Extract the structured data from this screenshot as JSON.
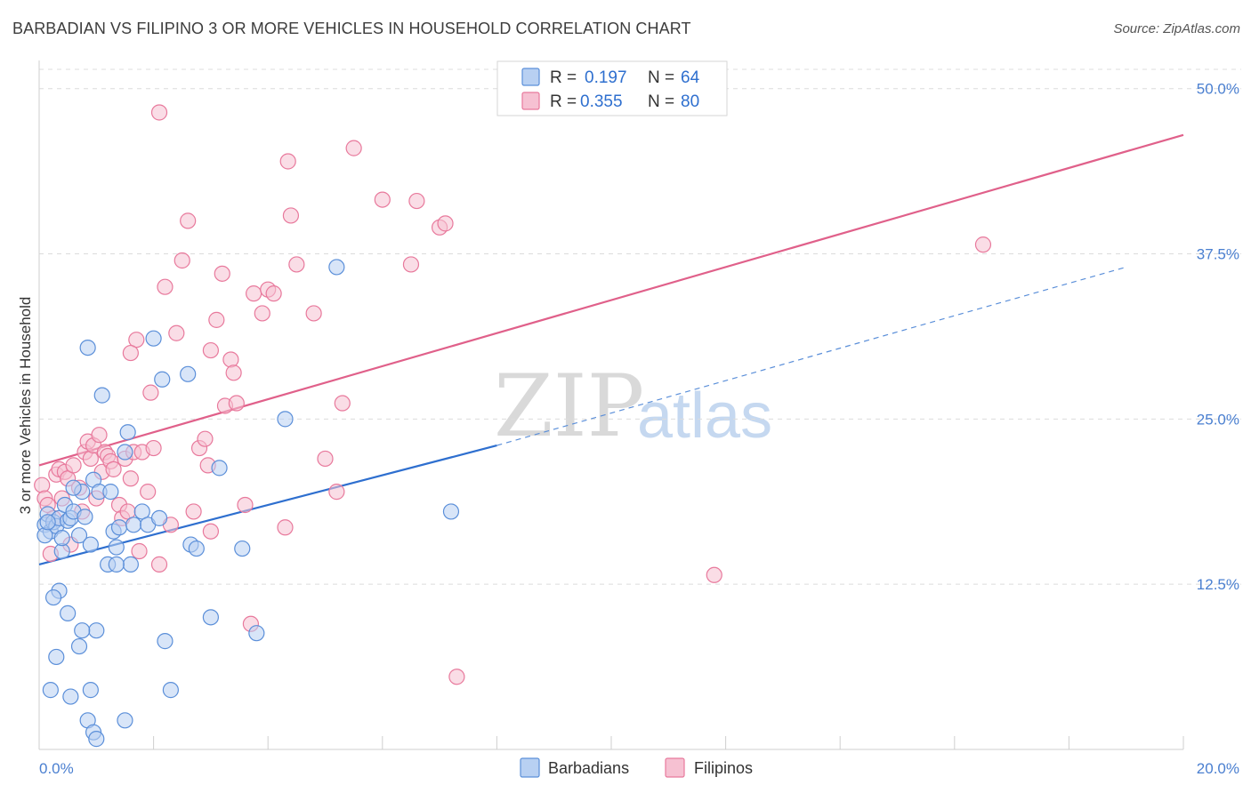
{
  "title": "BARBADIAN VS FILIPINO 3 OR MORE VEHICLES IN HOUSEHOLD CORRELATION CHART",
  "source": "Source: ZipAtlas.com",
  "watermark": {
    "zip": "ZIP",
    "atlas": "atlas"
  },
  "colors": {
    "blue": "#5b8fd9",
    "blue_fill": "#b8d0f2",
    "pink": "#e8799c",
    "pink_fill": "#f6c1d2",
    "blue_line": "#2e6fcf",
    "pink_line": "#e0608a",
    "tick_text": "#4a7fd0"
  },
  "legend": {
    "r_label": "R =",
    "n_label": "N =",
    "items": [
      {
        "r": "0.197",
        "n": "64"
      },
      {
        "r": "0.355",
        "n": "80"
      }
    ]
  },
  "chart_data": {
    "type": "scatter",
    "title": "BARBADIAN VS FILIPINO 3 OR MORE VEHICLES IN HOUSEHOLD CORRELATION CHART",
    "xlabel": "",
    "ylabel": "3 or more Vehicles in Household",
    "xlim": [
      0,
      20
    ],
    "ylim": [
      0,
      52
    ],
    "x_tick_labels": [
      "0.0%",
      "20.0%"
    ],
    "y_ticks": [
      12.5,
      25.0,
      37.5,
      50.0
    ],
    "y_tick_labels": [
      "12.5%",
      "25.0%",
      "37.5%",
      "50.0%"
    ],
    "series": [
      {
        "name": "Barbadians",
        "r": 0.197,
        "n": 64,
        "trend": {
          "x0": 0,
          "y0": 14.0,
          "x1": 8,
          "y1": 23.0,
          "dash_x1": 19.0,
          "dash_y1": 36.5
        },
        "points": [
          [
            0.1,
            17.0
          ],
          [
            0.15,
            17.8
          ],
          [
            0.2,
            16.5
          ],
          [
            0.25,
            17.2
          ],
          [
            0.3,
            16.9
          ],
          [
            0.35,
            17.5
          ],
          [
            0.4,
            15.0
          ],
          [
            0.45,
            18.5
          ],
          [
            0.5,
            17.3
          ],
          [
            0.55,
            17.5
          ],
          [
            0.6,
            18.0
          ],
          [
            0.7,
            16.2
          ],
          [
            0.75,
            19.5
          ],
          [
            0.8,
            17.6
          ],
          [
            0.85,
            30.4
          ],
          [
            0.9,
            15.5
          ],
          [
            0.95,
            20.4
          ],
          [
            1.0,
            9.0
          ],
          [
            1.05,
            19.5
          ],
          [
            1.1,
            26.8
          ],
          [
            1.2,
            14.0
          ],
          [
            1.25,
            19.5
          ],
          [
            1.3,
            16.5
          ],
          [
            1.35,
            15.3
          ],
          [
            1.4,
            16.8
          ],
          [
            1.5,
            22.5
          ],
          [
            1.55,
            24.0
          ],
          [
            1.6,
            14.0
          ],
          [
            1.65,
            17.0
          ],
          [
            1.8,
            18.0
          ],
          [
            1.9,
            17.0
          ],
          [
            2.0,
            31.1
          ],
          [
            2.1,
            17.5
          ],
          [
            2.15,
            28.0
          ],
          [
            2.2,
            8.2
          ],
          [
            2.3,
            4.5
          ],
          [
            2.6,
            28.4
          ],
          [
            2.65,
            15.5
          ],
          [
            2.75,
            15.2
          ],
          [
            3.0,
            10.0
          ],
          [
            3.15,
            21.3
          ],
          [
            3.55,
            15.2
          ],
          [
            3.8,
            8.8
          ],
          [
            4.3,
            25.0
          ],
          [
            5.2,
            36.5
          ],
          [
            7.2,
            18.0
          ],
          [
            0.3,
            7.0
          ],
          [
            0.35,
            12.0
          ],
          [
            0.5,
            10.3
          ],
          [
            0.55,
            4.0
          ],
          [
            0.7,
            7.8
          ],
          [
            0.75,
            9.0
          ],
          [
            0.85,
            2.2
          ],
          [
            0.9,
            4.5
          ],
          [
            0.95,
            1.3
          ],
          [
            1.0,
            0.8
          ],
          [
            0.25,
            11.5
          ],
          [
            1.5,
            2.2
          ],
          [
            0.2,
            4.5
          ],
          [
            0.1,
            16.2
          ],
          [
            0.15,
            17.2
          ],
          [
            0.4,
            16.0
          ],
          [
            0.6,
            19.8
          ],
          [
            1.35,
            14.0
          ]
        ]
      },
      {
        "name": "Filipinos",
        "r": 0.355,
        "n": 80,
        "trend": {
          "x0": 0,
          "y0": 21.5,
          "x1": 20,
          "y1": 46.5
        },
        "points": [
          [
            0.05,
            20.0
          ],
          [
            0.1,
            19.0
          ],
          [
            0.15,
            18.5
          ],
          [
            0.2,
            14.8
          ],
          [
            0.25,
            17.5
          ],
          [
            0.3,
            20.8
          ],
          [
            0.35,
            21.2
          ],
          [
            0.4,
            19.0
          ],
          [
            0.45,
            21.0
          ],
          [
            0.5,
            20.5
          ],
          [
            0.55,
            15.5
          ],
          [
            0.6,
            21.5
          ],
          [
            0.7,
            19.8
          ],
          [
            0.75,
            18.0
          ],
          [
            0.8,
            22.5
          ],
          [
            0.85,
            23.3
          ],
          [
            0.9,
            22.0
          ],
          [
            0.95,
            23.0
          ],
          [
            1.0,
            19.0
          ],
          [
            1.05,
            23.8
          ],
          [
            1.1,
            21.0
          ],
          [
            1.15,
            22.5
          ],
          [
            1.2,
            22.2
          ],
          [
            1.25,
            21.8
          ],
          [
            1.3,
            21.2
          ],
          [
            1.4,
            18.5
          ],
          [
            1.45,
            17.5
          ],
          [
            1.5,
            22.0
          ],
          [
            1.55,
            18.0
          ],
          [
            1.6,
            20.5
          ],
          [
            1.65,
            22.5
          ],
          [
            1.7,
            31.0
          ],
          [
            1.75,
            15.0
          ],
          [
            1.8,
            22.5
          ],
          [
            1.9,
            19.5
          ],
          [
            1.95,
            27.0
          ],
          [
            2.0,
            22.8
          ],
          [
            2.1,
            14.0
          ],
          [
            2.2,
            35.0
          ],
          [
            2.3,
            17.0
          ],
          [
            2.4,
            31.5
          ],
          [
            2.5,
            37.0
          ],
          [
            2.6,
            40.0
          ],
          [
            2.7,
            18.0
          ],
          [
            2.8,
            22.8
          ],
          [
            2.9,
            23.5
          ],
          [
            2.95,
            21.5
          ],
          [
            3.0,
            16.5
          ],
          [
            3.1,
            32.5
          ],
          [
            3.2,
            36.0
          ],
          [
            3.25,
            26.0
          ],
          [
            3.35,
            29.5
          ],
          [
            3.4,
            28.5
          ],
          [
            3.45,
            26.2
          ],
          [
            3.6,
            18.5
          ],
          [
            3.7,
            9.5
          ],
          [
            3.75,
            34.5
          ],
          [
            3.9,
            33.0
          ],
          [
            4.0,
            34.8
          ],
          [
            4.1,
            34.5
          ],
          [
            4.3,
            16.8
          ],
          [
            4.35,
            44.5
          ],
          [
            4.4,
            40.4
          ],
          [
            4.5,
            36.7
          ],
          [
            4.8,
            33.0
          ],
          [
            5.0,
            22.0
          ],
          [
            5.2,
            19.5
          ],
          [
            5.3,
            26.2
          ],
          [
            5.5,
            45.5
          ],
          [
            6.0,
            41.6
          ],
          [
            6.5,
            36.7
          ],
          [
            6.6,
            41.5
          ],
          [
            7.0,
            39.5
          ],
          [
            7.1,
            39.8
          ],
          [
            7.3,
            5.5
          ],
          [
            11.8,
            13.2
          ],
          [
            16.5,
            38.2
          ],
          [
            2.1,
            48.2
          ],
          [
            1.6,
            30.0
          ],
          [
            3.0,
            30.2
          ]
        ]
      }
    ]
  },
  "bottom_legend": [
    {
      "label": "Barbadians"
    },
    {
      "label": "Filipinos"
    }
  ]
}
